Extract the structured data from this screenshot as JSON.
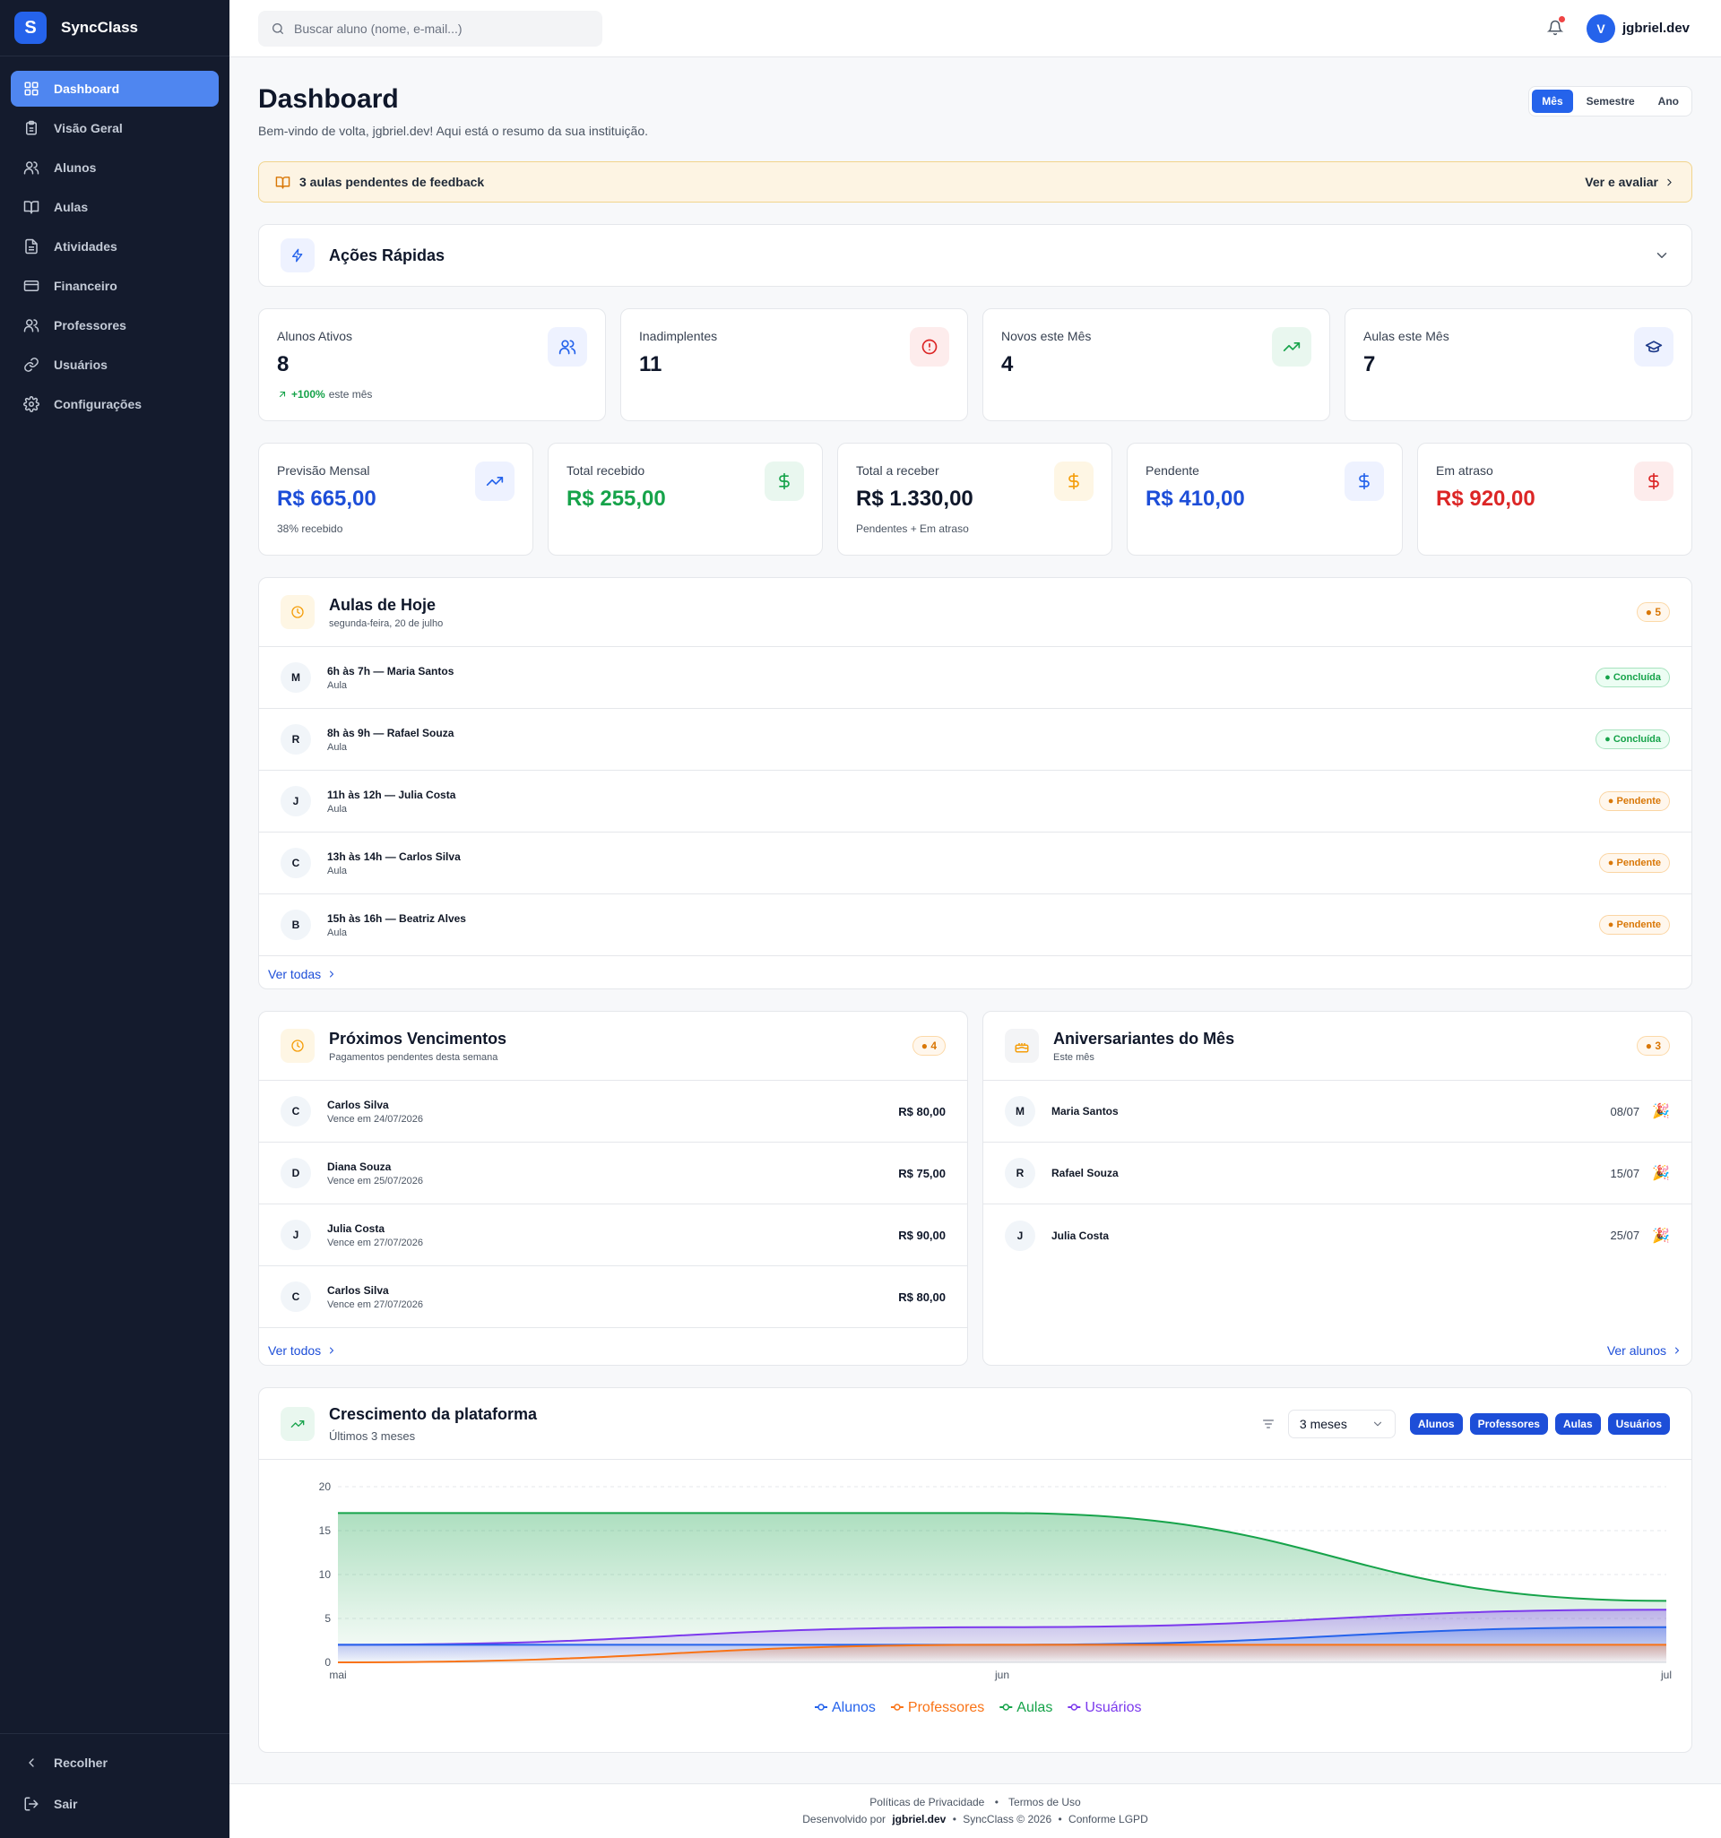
{
  "app": {
    "name": "SyncClass",
    "logo_letter": "S"
  },
  "sidebar": {
    "items": [
      {
        "label": "Dashboard",
        "icon": "grid-icon",
        "active": true
      },
      {
        "label": "Visão Geral",
        "icon": "clipboard-icon"
      },
      {
        "label": "Alunos",
        "icon": "users-icon"
      },
      {
        "label": "Aulas",
        "icon": "book-icon"
      },
      {
        "label": "Atividades",
        "icon": "file-icon"
      },
      {
        "label": "Financeiro",
        "icon": "wallet-icon"
      },
      {
        "label": "Professores",
        "icon": "users-icon"
      },
      {
        "label": "Usuários",
        "icon": "link-icon"
      },
      {
        "label": "Configurações",
        "icon": "gear-icon"
      }
    ],
    "collapse_label": "Recolher",
    "logout_label": "Sair"
  },
  "topbar": {
    "search_placeholder": "Buscar aluno (nome, e-mail...)",
    "user_initial": "V",
    "username": "jgbriel.dev"
  },
  "page": {
    "title": "Dashboard",
    "subtitle": "Bem-vindo de volta, jgbriel.dev! Aqui está o resumo da sua instituição.",
    "periods": [
      "Mês",
      "Semestre",
      "Ano"
    ],
    "active_period": "Mês"
  },
  "banner": {
    "text": "3 aulas pendentes de feedback",
    "link": "Ver e avaliar"
  },
  "quick_actions": {
    "title": "Ações Rápidas"
  },
  "stats": [
    {
      "label": "Alunos Ativos",
      "value": "8",
      "trend": "+100%",
      "trend_suffix": "este mês",
      "icon": "users-icon"
    },
    {
      "label": "Inadimplentes",
      "value": "11",
      "icon": "alert-circle-icon"
    },
    {
      "label": "Novos este Mês",
      "value": "4",
      "icon": "trending-up-icon"
    },
    {
      "label": "Aulas este Mês",
      "value": "7",
      "icon": "graduation-cap-icon"
    }
  ],
  "finance": [
    {
      "label": "Previsão Mensal",
      "value": "R$ 665,00",
      "note": "38% recebido",
      "color": "#1d4ed8"
    },
    {
      "label": "Total recebido",
      "value": "R$ 255,00",
      "note": "",
      "color": "#16a34a"
    },
    {
      "label": "Total a receber",
      "value": "R$ 1.330,00",
      "note": "Pendentes + Em atraso",
      "color": "#0f172a"
    },
    {
      "label": "Pendente",
      "value": "R$ 410,00",
      "note": "",
      "color": "#1d4ed8"
    },
    {
      "label": "Em atraso",
      "value": "R$ 920,00",
      "note": "",
      "color": "#dc2626"
    }
  ],
  "today": {
    "title": "Aulas de Hoje",
    "date": "segunda-feira, 20 de julho",
    "badge": "5",
    "rows": [
      {
        "initial": "M",
        "title": "6h às 7h — Maria Santos",
        "sub": "Aula",
        "status": "Concluída"
      },
      {
        "initial": "R",
        "title": "8h às 9h — Rafael Souza",
        "sub": "Aula",
        "status": "Concluída"
      },
      {
        "initial": "J",
        "title": "11h às 12h — Julia Costa",
        "sub": "Aula",
        "status": "Pendente"
      },
      {
        "initial": "C",
        "title": "13h às 14h — Carlos Silva",
        "sub": "Aula",
        "status": "Pendente"
      },
      {
        "initial": "B",
        "title": "15h às 16h — Beatriz Alves",
        "sub": "Aula",
        "status": "Pendente"
      }
    ],
    "more": "Ver todas"
  },
  "due": {
    "title": "Próximos Vencimentos",
    "sub": "Pagamentos pendentes desta semana",
    "badge": "4",
    "rows": [
      {
        "initial": "C",
        "name": "Carlos Silva",
        "date": "Vence em 24/07/2026",
        "amount": "R$ 80,00"
      },
      {
        "initial": "D",
        "name": "Diana Souza",
        "date": "Vence em 25/07/2026",
        "amount": "R$ 75,00"
      },
      {
        "initial": "J",
        "name": "Julia Costa",
        "date": "Vence em 27/07/2026",
        "amount": "R$ 90,00"
      },
      {
        "initial": "C",
        "name": "Carlos Silva",
        "date": "Vence em 27/07/2026",
        "amount": "R$ 80,00"
      }
    ],
    "more": "Ver todos"
  },
  "birthdays": {
    "title": "Aniversariantes do Mês",
    "sub": "Este mês",
    "badge": "3",
    "rows": [
      {
        "initial": "M",
        "name": "Maria Santos",
        "date": "08/07"
      },
      {
        "initial": "R",
        "name": "Rafael Souza",
        "date": "15/07"
      },
      {
        "initial": "J",
        "name": "Julia Costa",
        "date": "25/07"
      }
    ],
    "more": "Ver alunos"
  },
  "growth": {
    "title": "Crescimento da plataforma",
    "sub": "Últimos 3 meses",
    "range": "3 meses",
    "filters": [
      "Alunos",
      "Professores",
      "Aulas",
      "Usuários"
    ]
  },
  "chart_data": {
    "type": "area",
    "x": [
      "mai",
      "jun",
      "jul"
    ],
    "ylim": [
      0,
      20
    ],
    "yticks": [
      0,
      5,
      10,
      15,
      20
    ],
    "series": [
      {
        "name": "Alunos",
        "values": [
          2,
          2,
          4
        ],
        "color": "#2563eb"
      },
      {
        "name": "Professores",
        "values": [
          0,
          2,
          2
        ],
        "color": "#f97316"
      },
      {
        "name": "Aulas",
        "values": [
          17,
          17,
          7
        ],
        "color": "#16a34a"
      },
      {
        "name": "Usuários",
        "values": [
          2,
          4,
          6
        ],
        "color": "#7c3aed"
      }
    ],
    "legend": "bottom"
  },
  "footer": {
    "privacy": "Políticas de Privacidade",
    "terms": "Termos de Uso",
    "dev_prefix": "Desenvolvido por",
    "dev": "jgbriel.dev",
    "copyright": "SyncClass © 2026",
    "lgpd": "Conforme LGPD"
  }
}
